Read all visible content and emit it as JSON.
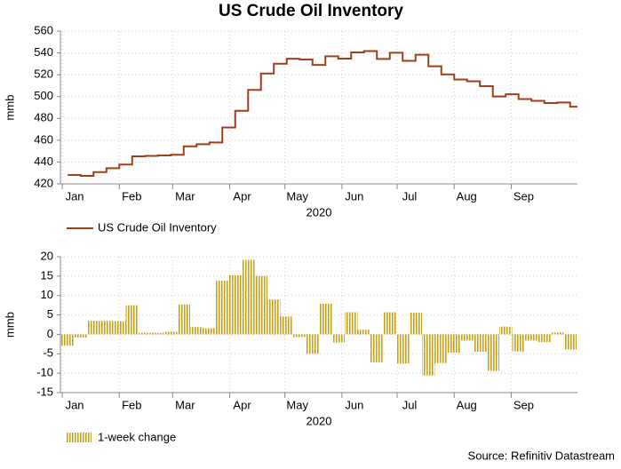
{
  "chart_data": [
    {
      "type": "line",
      "title": "US Crude Oil Inventory",
      "xlabel": "2020",
      "ylabel": "mmb",
      "x": [
        3,
        10,
        17,
        24,
        31,
        38,
        45,
        52,
        59,
        66,
        73,
        80,
        87,
        94,
        101,
        108,
        115,
        122,
        129,
        136,
        143,
        150,
        157,
        164,
        171,
        178,
        185,
        192,
        199,
        206,
        213,
        220,
        227,
        234,
        241,
        248,
        255,
        262,
        269,
        276
      ],
      "series": [
        {
          "name": "US Crude Oil Inventory",
          "color": "#a0401a",
          "values": [
            428.1,
            427.3,
            430.8,
            434.3,
            437.7,
            445.2,
            445.6,
            446.0,
            446.7,
            454.4,
            456.3,
            457.9,
            471.7,
            486.9,
            506.1,
            521.1,
            530.1,
            534.7,
            534.0,
            529.0,
            536.9,
            534.8,
            540.5,
            541.7,
            534.5,
            540.2,
            532.7,
            538.3,
            527.7,
            520.3,
            515.6,
            514.0,
            509.5,
            500.1,
            502.1,
            497.7,
            496.1,
            494.1,
            494.6,
            490.7
          ]
        }
      ],
      "xlim": [
        -1,
        280
      ],
      "ylim": [
        420,
        560
      ],
      "yticks": [
        420,
        440,
        460,
        480,
        500,
        520,
        540,
        560
      ],
      "xticks": [
        {
          "value": 0,
          "label": "Jan"
        },
        {
          "value": 31,
          "label": "Feb"
        },
        {
          "value": 60,
          "label": "Mar"
        },
        {
          "value": 91,
          "label": "Apr"
        },
        {
          "value": 121,
          "label": "May"
        },
        {
          "value": 152,
          "label": "Jun"
        },
        {
          "value": 182,
          "label": "Jul"
        },
        {
          "value": 213,
          "label": "Aug"
        },
        {
          "value": 244,
          "label": "Sep"
        }
      ],
      "grid": true
    },
    {
      "type": "bar",
      "xlabel": "2020",
      "ylabel": "mmb",
      "x": [
        3,
        10,
        17,
        24,
        31,
        38,
        45,
        52,
        59,
        66,
        73,
        80,
        87,
        94,
        101,
        108,
        115,
        122,
        129,
        136,
        143,
        150,
        157,
        164,
        171,
        178,
        185,
        192,
        199,
        206,
        213,
        220,
        227,
        234,
        241,
        248,
        255,
        262,
        269,
        276
      ],
      "series": [
        {
          "name": "1-week change",
          "color": "#c9a21a",
          "values": [
            -2.9,
            -0.8,
            3.5,
            3.5,
            3.4,
            7.5,
            0.4,
            0.4,
            0.7,
            7.7,
            1.9,
            1.6,
            13.8,
            15.2,
            19.2,
            15.0,
            9.0,
            4.6,
            -0.7,
            -5.0,
            7.9,
            -2.1,
            5.7,
            1.2,
            -7.2,
            5.7,
            -7.5,
            5.6,
            -10.6,
            -7.4,
            -4.7,
            -1.6,
            -4.5,
            -9.4,
            2.0,
            -4.4,
            -1.6,
            -2.0,
            0.5,
            -3.9
          ]
        }
      ],
      "xlim": [
        -1,
        280
      ],
      "ylim": [
        -15,
        20
      ],
      "yticks": [
        -15,
        -10,
        -5,
        0,
        5,
        10,
        15,
        20
      ],
      "xticks": [
        {
          "value": 0,
          "label": "Jan"
        },
        {
          "value": 31,
          "label": "Feb"
        },
        {
          "value": 60,
          "label": "Mar"
        },
        {
          "value": 91,
          "label": "Apr"
        },
        {
          "value": 121,
          "label": "May"
        },
        {
          "value": 152,
          "label": "Jun"
        },
        {
          "value": 182,
          "label": "Jul"
        },
        {
          "value": 213,
          "label": "Aug"
        },
        {
          "value": 244,
          "label": "Sep"
        }
      ],
      "grid": true
    }
  ],
  "source": "Source: Refinitiv Datastream"
}
